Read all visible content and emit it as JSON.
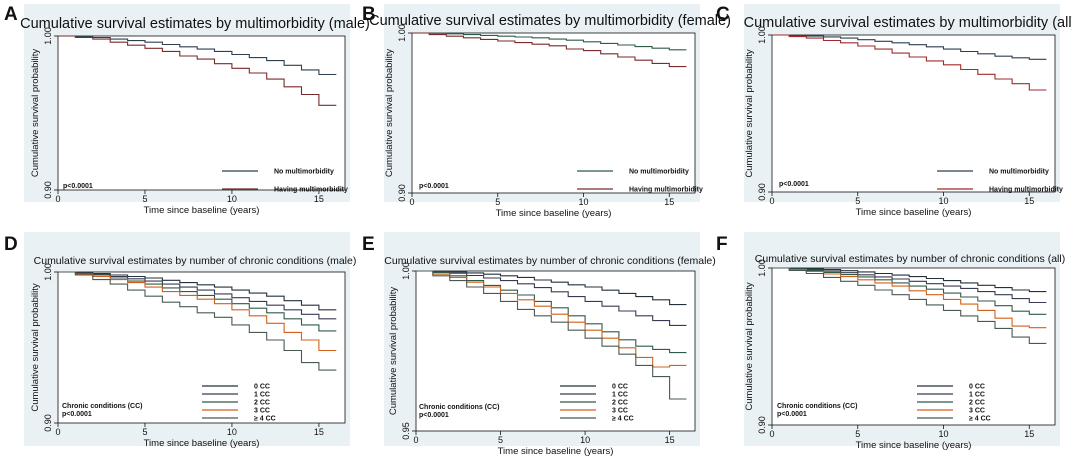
{
  "chart_data": [
    {
      "panel": "A",
      "type": "line",
      "step": true,
      "title": "Cumulative survival estimates by multimorbidity (male)",
      "xlabel": "Time since baseline (years)",
      "ylabel": "Cumulative survival probability",
      "xlim": [
        0,
        16.5
      ],
      "ylim": [
        0.9,
        1.0
      ],
      "xticks": [
        0,
        5,
        10,
        15
      ],
      "yticks": [
        "0.90",
        "1.00"
      ],
      "pvalue": "p<0.0001",
      "legend_title": "",
      "series": [
        {
          "name": "No multimorbidity",
          "color": "#2e3f50",
          "x": [
            0,
            1,
            2,
            3,
            4,
            5,
            6,
            7,
            8,
            9,
            10,
            11,
            12,
            13,
            14,
            15,
            16
          ],
          "y": [
            1.0,
            0.9995,
            0.999,
            0.998,
            0.997,
            0.996,
            0.9945,
            0.993,
            0.9915,
            0.99,
            0.988,
            0.986,
            0.984,
            0.981,
            0.978,
            0.975,
            0.975
          ]
        },
        {
          "name": "Having multimorbidity",
          "color": "#7a2a2a",
          "x": [
            0,
            1,
            2,
            3,
            4,
            5,
            6,
            7,
            8,
            9,
            10,
            11,
            12,
            13,
            14,
            15,
            16
          ],
          "y": [
            1.0,
            0.999,
            0.998,
            0.996,
            0.994,
            0.992,
            0.99,
            0.987,
            0.985,
            0.982,
            0.979,
            0.976,
            0.972,
            0.967,
            0.962,
            0.955,
            0.955
          ]
        }
      ]
    },
    {
      "panel": "B",
      "type": "line",
      "step": true,
      "title": "Cumulative survival estimates by multimorbidity (female)",
      "xlabel": "Time since baseline (years)",
      "ylabel": "Cumulative survival probability",
      "xlim": [
        0,
        16.5
      ],
      "ylim": [
        0.9,
        1.0
      ],
      "xticks": [
        0,
        5,
        10,
        15
      ],
      "yticks": [
        "0.90",
        "1.00"
      ],
      "pvalue": "p<0.0001",
      "legend_title": "",
      "series": [
        {
          "name": "No multimorbidity",
          "color": "#2f5a48",
          "x": [
            0,
            1,
            2,
            3,
            4,
            5,
            6,
            7,
            8,
            9,
            10,
            11,
            12,
            13,
            14,
            15,
            16
          ],
          "y": [
            1.0,
            0.9998,
            0.9995,
            0.999,
            0.9985,
            0.998,
            0.9975,
            0.997,
            0.9962,
            0.9955,
            0.9945,
            0.9935,
            0.9925,
            0.9915,
            0.9905,
            0.9895,
            0.9895
          ]
        },
        {
          "name": "Having multimorbidity",
          "color": "#7a2a2a",
          "x": [
            0,
            1,
            2,
            3,
            4,
            5,
            6,
            7,
            8,
            9,
            10,
            11,
            12,
            13,
            14,
            15,
            16
          ],
          "y": [
            1.0,
            0.999,
            0.998,
            0.997,
            0.996,
            0.995,
            0.994,
            0.993,
            0.992,
            0.99,
            0.989,
            0.987,
            0.985,
            0.983,
            0.981,
            0.979,
            0.979
          ]
        }
      ]
    },
    {
      "panel": "C",
      "type": "line",
      "step": true,
      "title": "Cumulative survival estimates by multimorbidity (all)",
      "xlabel": "Time since baseline (years)",
      "ylabel": "Cumulative survival probability",
      "xlim": [
        0,
        16.5
      ],
      "ylim": [
        0.9,
        1.0
      ],
      "xticks": [
        0,
        5,
        10,
        15
      ],
      "yticks": [
        "0.90",
        "1.00"
      ],
      "pvalue": "p<0.0001",
      "legend_title": "",
      "series": [
        {
          "name": "No multimorbidity",
          "color": "#2e3f50",
          "x": [
            0,
            1,
            2,
            3,
            4,
            5,
            6,
            7,
            8,
            9,
            10,
            11,
            12,
            13,
            14,
            15,
            16
          ],
          "y": [
            1.0,
            0.9997,
            0.9993,
            0.9988,
            0.998,
            0.997,
            0.996,
            0.995,
            0.9938,
            0.9925,
            0.991,
            0.9895,
            0.988,
            0.9865,
            0.9855,
            0.9845,
            0.9845
          ]
        },
        {
          "name": "Having multimorbidity",
          "color": "#a02a2a",
          "x": [
            0,
            1,
            2,
            3,
            4,
            5,
            6,
            7,
            8,
            9,
            10,
            11,
            12,
            13,
            14,
            15,
            16
          ],
          "y": [
            1.0,
            0.999,
            0.998,
            0.9965,
            0.995,
            0.993,
            0.991,
            0.9885,
            0.986,
            0.9835,
            0.981,
            0.978,
            0.975,
            0.972,
            0.969,
            0.965,
            0.965
          ]
        }
      ]
    },
    {
      "panel": "D",
      "type": "line",
      "step": true,
      "title": "Cumulative survival estimates by number of chronic conditions (male)",
      "xlabel": "Time since baseline (years)",
      "ylabel": "Cumulative survival probability",
      "xlim": [
        0,
        16.5
      ],
      "ylim": [
        0.9,
        1.0
      ],
      "xticks": [
        0,
        5,
        10,
        15
      ],
      "yticks": [
        "0.90",
        "1.00"
      ],
      "pvalue": "p<0.0001",
      "legend_title": "Chronic conditions (CC)",
      "series": [
        {
          "name": "0 CC",
          "color": "#24303c",
          "x": [
            0,
            1,
            2,
            3,
            4,
            5,
            6,
            7,
            8,
            9,
            10,
            11,
            12,
            13,
            14,
            15,
            16
          ],
          "y": [
            1.0,
            0.9995,
            0.999,
            0.998,
            0.997,
            0.996,
            0.9945,
            0.993,
            0.9915,
            0.99,
            0.988,
            0.986,
            0.984,
            0.981,
            0.978,
            0.975,
            0.975
          ]
        },
        {
          "name": "1 CC",
          "color": "#3a3a52",
          "x": [
            0,
            1,
            2,
            3,
            4,
            5,
            6,
            7,
            8,
            9,
            10,
            11,
            12,
            13,
            14,
            15,
            16
          ],
          "y": [
            1.0,
            0.9993,
            0.9985,
            0.997,
            0.9955,
            0.994,
            0.992,
            0.99,
            0.988,
            0.9855,
            0.983,
            0.9805,
            0.978,
            0.975,
            0.972,
            0.969,
            0.969
          ]
        },
        {
          "name": "2 CC",
          "color": "#2f5a48",
          "x": [
            0,
            1,
            2,
            3,
            4,
            5,
            6,
            7,
            8,
            9,
            10,
            11,
            12,
            13,
            14,
            15,
            16
          ],
          "y": [
            1.0,
            0.999,
            0.998,
            0.996,
            0.994,
            0.992,
            0.9895,
            0.987,
            0.9845,
            0.982,
            0.979,
            0.976,
            0.973,
            0.969,
            0.965,
            0.961,
            0.961
          ]
        },
        {
          "name": "3 CC",
          "color": "#d2601a",
          "x": [
            0,
            1,
            2,
            3,
            4,
            5,
            6,
            7,
            8,
            9,
            10,
            11,
            12,
            13,
            14,
            15,
            16
          ],
          "y": [
            1.0,
            0.9985,
            0.997,
            0.995,
            0.993,
            0.99,
            0.987,
            0.9845,
            0.982,
            0.979,
            0.975,
            0.971,
            0.966,
            0.96,
            0.955,
            0.948,
            0.948
          ]
        },
        {
          "name": "≥ 4 CC",
          "color": "#4a5a52",
          "x": [
            0,
            1,
            2,
            3,
            4,
            5,
            6,
            7,
            8,
            9,
            10,
            11,
            12,
            13,
            14,
            15,
            16
          ],
          "y": [
            1.0,
            0.998,
            0.995,
            0.992,
            0.988,
            0.984,
            0.98,
            0.977,
            0.973,
            0.97,
            0.965,
            0.96,
            0.955,
            0.948,
            0.94,
            0.935,
            0.935
          ]
        }
      ]
    },
    {
      "panel": "E",
      "type": "line",
      "step": true,
      "title": "Cumulative survival estimates by number of chronic conditions (female)",
      "xlabel": "Time since baseline (years)",
      "ylabel": "Cumulative survival probability",
      "xlim": [
        0,
        16.5
      ],
      "ylim": [
        0.95,
        1.0
      ],
      "xticks": [
        0,
        5,
        10,
        15
      ],
      "yticks": [
        "0.95",
        "1.00"
      ],
      "pvalue": "p<0.0001",
      "legend_title": "Chronic conditions (CC)",
      "series": [
        {
          "name": "0 CC",
          "color": "#24303c",
          "x": [
            0,
            1,
            2,
            3,
            4,
            5,
            6,
            7,
            8,
            9,
            10,
            11,
            12,
            13,
            14,
            15,
            16
          ],
          "y": [
            1.0,
            0.9999,
            0.9997,
            0.9994,
            0.999,
            0.9985,
            0.998,
            0.9972,
            0.9965,
            0.9957,
            0.995,
            0.994,
            0.993,
            0.992,
            0.991,
            0.9895,
            0.9895
          ]
        },
        {
          "name": "1 CC",
          "color": "#3a3a52",
          "x": [
            0,
            1,
            2,
            3,
            4,
            5,
            6,
            7,
            8,
            9,
            10,
            11,
            12,
            13,
            14,
            15,
            16
          ],
          "y": [
            1.0,
            0.9998,
            0.9993,
            0.9986,
            0.9978,
            0.997,
            0.996,
            0.9948,
            0.9935,
            0.992,
            0.9905,
            0.989,
            0.9875,
            0.986,
            0.9845,
            0.983,
            0.983
          ]
        },
        {
          "name": "2 CC",
          "color": "#2f5a48",
          "x": [
            0,
            1,
            2,
            3,
            4,
            5,
            6,
            7,
            8,
            9,
            10,
            11,
            12,
            13,
            14,
            15,
            16
          ],
          "y": [
            1.0,
            0.9995,
            0.9985,
            0.997,
            0.9955,
            0.994,
            0.9925,
            0.9905,
            0.9885,
            0.986,
            0.9835,
            0.981,
            0.9785,
            0.9765,
            0.9755,
            0.9745,
            0.9745
          ]
        },
        {
          "name": "3 CC",
          "color": "#d2601a",
          "x": [
            0,
            1,
            2,
            3,
            4,
            5,
            6,
            7,
            8,
            9,
            10,
            11,
            12,
            13,
            14,
            15,
            16
          ],
          "y": [
            1.0,
            0.999,
            0.998,
            0.9965,
            0.995,
            0.993,
            0.991,
            0.989,
            0.9865,
            0.984,
            0.9815,
            0.979,
            0.976,
            0.973,
            0.97,
            0.9705,
            0.9705
          ]
        },
        {
          "name": "≥ 4 CC",
          "color": "#4a5a52",
          "x": [
            0,
            1,
            2,
            3,
            4,
            5,
            6,
            7,
            8,
            9,
            10,
            11,
            12,
            13,
            14,
            15,
            16
          ],
          "y": [
            1.0,
            0.9985,
            0.997,
            0.995,
            0.993,
            0.9905,
            0.988,
            0.986,
            0.984,
            0.9815,
            0.979,
            0.9765,
            0.974,
            0.9705,
            0.967,
            0.96,
            0.96
          ]
        }
      ]
    },
    {
      "panel": "F",
      "type": "line",
      "step": true,
      "title": "Cumulative survival estimates by number of chronic conditions (all)",
      "xlabel": "Time since baseline (years)",
      "ylabel": "Cumulative survival probability",
      "xlim": [
        0,
        16.5
      ],
      "ylim": [
        0.9,
        1.0
      ],
      "xticks": [
        0,
        5,
        10,
        15
      ],
      "yticks": [
        "0.90",
        "1.00"
      ],
      "pvalue": "p<0.0001",
      "legend_title": "Chronic conditions (CC)",
      "series": [
        {
          "name": "0 CC",
          "color": "#24303c",
          "x": [
            0,
            1,
            2,
            3,
            4,
            5,
            6,
            7,
            8,
            9,
            10,
            11,
            12,
            13,
            14,
            15,
            16
          ],
          "y": [
            1.0,
            0.9998,
            0.9995,
            0.999,
            0.9983,
            0.9975,
            0.9965,
            0.9955,
            0.9945,
            0.9933,
            0.992,
            0.9905,
            0.989,
            0.9875,
            0.986,
            0.985,
            0.985
          ]
        },
        {
          "name": "1 CC",
          "color": "#3a3a52",
          "x": [
            0,
            1,
            2,
            3,
            4,
            5,
            6,
            7,
            8,
            9,
            10,
            11,
            12,
            13,
            14,
            15,
            16
          ],
          "y": [
            1.0,
            0.9996,
            0.999,
            0.998,
            0.997,
            0.9957,
            0.9943,
            0.993,
            0.9915,
            0.99,
            0.9885,
            0.987,
            0.985,
            0.983,
            0.9805,
            0.978,
            0.978
          ]
        },
        {
          "name": "2 CC",
          "color": "#2f5a48",
          "x": [
            0,
            1,
            2,
            3,
            4,
            5,
            6,
            7,
            8,
            9,
            10,
            11,
            12,
            13,
            14,
            15,
            16
          ],
          "y": [
            1.0,
            0.9993,
            0.9985,
            0.9972,
            0.9958,
            0.9943,
            0.9925,
            0.9905,
            0.9885,
            0.9865,
            0.984,
            0.9815,
            0.979,
            0.976,
            0.9725,
            0.9705,
            0.9705
          ]
        },
        {
          "name": "3 CC",
          "color": "#d2601a",
          "x": [
            0,
            1,
            2,
            3,
            4,
            5,
            6,
            7,
            8,
            9,
            10,
            11,
            12,
            13,
            14,
            15,
            16
          ],
          "y": [
            1.0,
            0.999,
            0.9978,
            0.9962,
            0.9945,
            0.9925,
            0.9905,
            0.9885,
            0.9855,
            0.983,
            0.98,
            0.977,
            0.973,
            0.968,
            0.963,
            0.962,
            0.962
          ]
        },
        {
          "name": "≥ 4 CC",
          "color": "#4a5a52",
          "x": [
            0,
            1,
            2,
            3,
            4,
            5,
            6,
            7,
            8,
            9,
            10,
            11,
            12,
            13,
            14,
            15,
            16
          ],
          "y": [
            1.0,
            0.9985,
            0.9965,
            0.994,
            0.9915,
            0.989,
            0.986,
            0.983,
            0.98,
            0.9765,
            0.973,
            0.9695,
            0.966,
            0.9615,
            0.956,
            0.952,
            0.952
          ]
        }
      ]
    }
  ]
}
